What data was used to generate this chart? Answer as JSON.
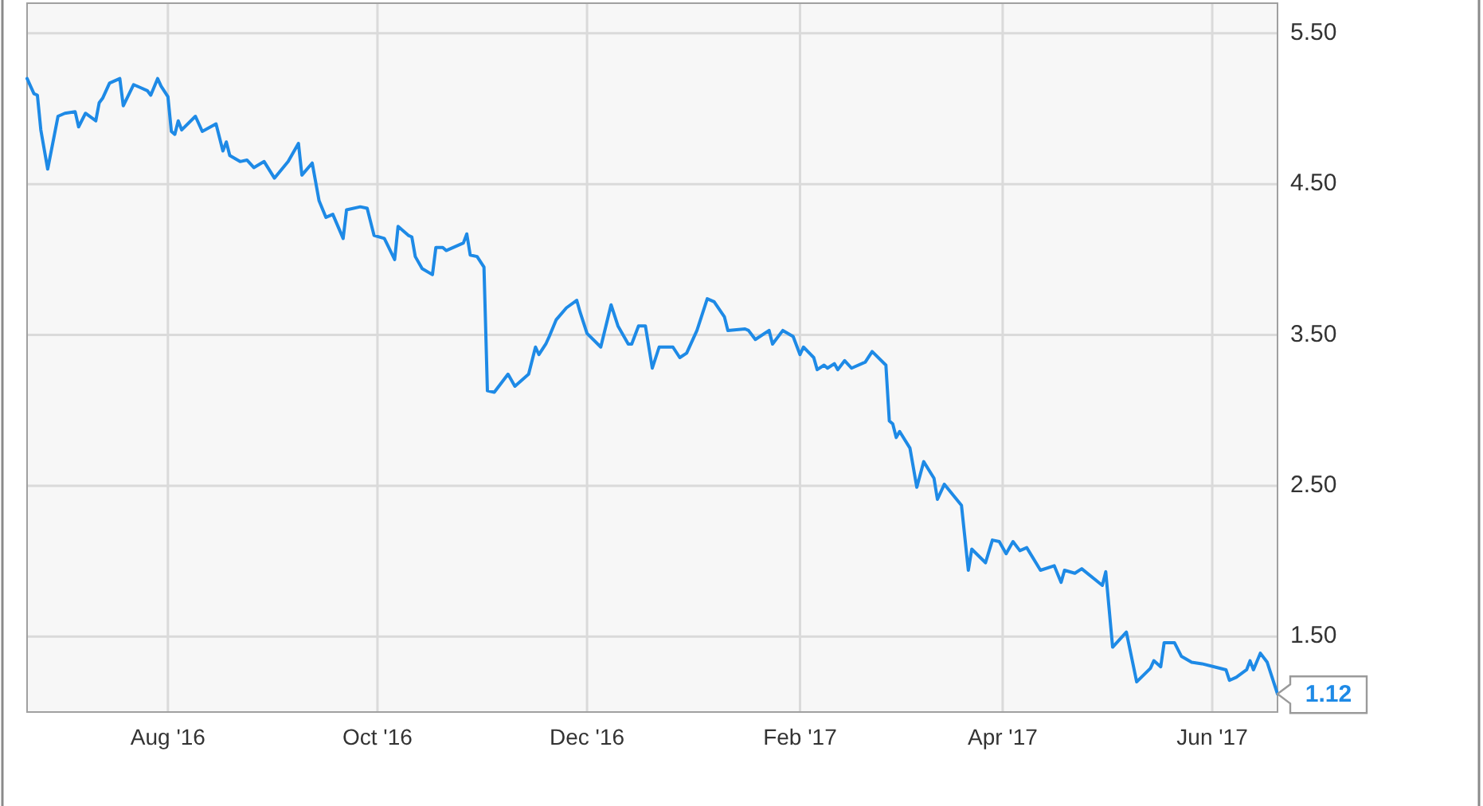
{
  "chart_data": {
    "type": "line",
    "x": [
      "2016-06-21",
      "2016-06-23",
      "2016-06-24",
      "2016-06-25",
      "2016-06-27",
      "2016-06-30",
      "2016-07-02",
      "2016-07-05",
      "2016-07-06",
      "2016-07-08",
      "2016-07-11",
      "2016-07-12",
      "2016-07-13",
      "2016-07-15",
      "2016-07-18",
      "2016-07-19",
      "2016-07-22",
      "2016-07-24",
      "2016-07-26",
      "2016-07-27",
      "2016-07-29",
      "2016-07-30",
      "2016-08-01",
      "2016-08-02",
      "2016-08-03",
      "2016-08-04",
      "2016-08-05",
      "2016-08-09",
      "2016-08-11",
      "2016-08-15",
      "2016-08-17",
      "2016-08-18",
      "2016-08-19",
      "2016-08-22",
      "2016-08-24",
      "2016-08-26",
      "2016-08-29",
      "2016-09-01",
      "2016-09-05",
      "2016-09-08",
      "2016-09-09",
      "2016-09-12",
      "2016-09-14",
      "2016-09-16",
      "2016-09-18",
      "2016-09-21",
      "2016-09-22",
      "2016-09-26",
      "2016-09-28",
      "2016-09-30",
      "2016-10-03",
      "2016-10-06",
      "2016-10-07",
      "2016-10-10",
      "2016-10-11",
      "2016-10-12",
      "2016-10-14",
      "2016-10-17",
      "2016-10-18",
      "2016-10-20",
      "2016-10-21",
      "2016-10-26",
      "2016-10-27",
      "2016-10-28",
      "2016-10-30",
      "2016-11-01",
      "2016-11-02",
      "2016-11-04",
      "2016-11-08",
      "2016-11-10",
      "2016-11-14",
      "2016-11-16",
      "2016-11-17",
      "2016-11-19",
      "2016-11-20",
      "2016-11-22",
      "2016-11-25",
      "2016-11-28",
      "2016-11-29",
      "2016-12-01",
      "2016-12-05",
      "2016-12-08",
      "2016-12-10",
      "2016-12-13",
      "2016-12-14",
      "2016-12-16",
      "2016-12-18",
      "2016-12-20",
      "2016-12-22",
      "2016-12-26",
      "2016-12-28",
      "2016-12-30",
      "2017-01-02",
      "2017-01-05",
      "2017-01-07",
      "2017-01-10",
      "2017-01-11",
      "2017-01-16",
      "2017-01-17",
      "2017-01-19",
      "2017-01-23",
      "2017-01-24",
      "2017-01-27",
      "2017-01-30",
      "2017-02-01",
      "2017-02-02",
      "2017-02-05",
      "2017-02-06",
      "2017-02-08",
      "2017-02-09",
      "2017-02-11",
      "2017-02-12",
      "2017-02-14",
      "2017-02-16",
      "2017-02-20",
      "2017-02-22",
      "2017-02-26",
      "2017-02-27",
      "2017-02-28",
      "2017-03-01",
      "2017-03-02",
      "2017-03-05",
      "2017-03-07",
      "2017-03-09",
      "2017-03-12",
      "2017-03-13",
      "2017-03-15",
      "2017-03-20",
      "2017-03-22",
      "2017-03-23",
      "2017-03-27",
      "2017-03-29",
      "2017-03-31",
      "2017-04-02",
      "2017-04-04",
      "2017-04-06",
      "2017-04-08",
      "2017-04-12",
      "2017-04-16",
      "2017-04-18",
      "2017-04-19",
      "2017-04-22",
      "2017-04-24",
      "2017-04-30",
      "2017-05-01",
      "2017-05-03",
      "2017-05-07",
      "2017-05-10",
      "2017-05-14",
      "2017-05-15",
      "2017-05-17",
      "2017-05-18",
      "2017-05-21",
      "2017-05-23",
      "2017-05-26",
      "2017-05-29",
      "2017-06-05",
      "2017-06-06",
      "2017-06-08",
      "2017-06-11",
      "2017-06-12",
      "2017-06-13",
      "2017-06-15",
      "2017-06-17",
      "2017-06-20"
    ],
    "series": [
      {
        "color": "#1e8ae6",
        "values": [
          5.2,
          5.1,
          5.09,
          4.86,
          4.6,
          4.95,
          4.97,
          4.98,
          4.88,
          4.97,
          4.92,
          5.04,
          5.07,
          5.17,
          5.2,
          5.02,
          5.16,
          5.14,
          5.12,
          5.09,
          5.2,
          5.15,
          5.08,
          4.85,
          4.83,
          4.92,
          4.86,
          4.95,
          4.85,
          4.9,
          4.72,
          4.78,
          4.69,
          4.65,
          4.66,
          4.61,
          4.65,
          4.54,
          4.65,
          4.77,
          4.56,
          4.64,
          4.39,
          4.28,
          4.3,
          4.14,
          4.33,
          4.35,
          4.34,
          4.16,
          4.14,
          4.0,
          4.22,
          4.16,
          4.15,
          4.02,
          3.94,
          3.9,
          4.08,
          4.08,
          4.06,
          4.11,
          4.17,
          4.03,
          4.02,
          3.95,
          3.13,
          3.12,
          3.24,
          3.16,
          3.24,
          3.42,
          3.37,
          3.44,
          3.49,
          3.6,
          3.68,
          3.73,
          3.65,
          3.51,
          3.42,
          3.7,
          3.56,
          3.44,
          3.44,
          3.56,
          3.56,
          3.28,
          3.42,
          3.42,
          3.35,
          3.38,
          3.53,
          3.74,
          3.72,
          3.62,
          3.53,
          3.54,
          3.53,
          3.47,
          3.53,
          3.44,
          3.53,
          3.49,
          3.37,
          3.42,
          3.35,
          3.27,
          3.3,
          3.28,
          3.31,
          3.27,
          3.33,
          3.28,
          3.32,
          3.39,
          3.3,
          2.93,
          2.91,
          2.82,
          2.86,
          2.75,
          2.49,
          2.66,
          2.55,
          2.41,
          2.51,
          2.37,
          1.94,
          2.08,
          1.99,
          2.14,
          2.13,
          2.05,
          2.13,
          2.07,
          2.09,
          1.94,
          1.97,
          1.86,
          1.94,
          1.92,
          1.95,
          1.84,
          1.93,
          1.43,
          1.53,
          1.2,
          1.29,
          1.34,
          1.3,
          1.46,
          1.46,
          1.37,
          1.33,
          1.32,
          1.28,
          1.21,
          1.23,
          1.28,
          1.34,
          1.28,
          1.39,
          1.33,
          1.12
        ]
      }
    ],
    "xlim": [
      "2016-06-21",
      "2017-06-20"
    ],
    "ylim": [
      1.0,
      5.7
    ],
    "xticks": [
      {
        "value": "2016-08-01",
        "label": "Aug '16"
      },
      {
        "value": "2016-10-01",
        "label": "Oct '16"
      },
      {
        "value": "2016-12-01",
        "label": "Dec '16"
      },
      {
        "value": "2017-02-01",
        "label": "Feb '17"
      },
      {
        "value": "2017-04-01",
        "label": "Apr '17"
      },
      {
        "value": "2017-06-01",
        "label": "Jun '17"
      }
    ],
    "yticks": [
      {
        "value": 1.5,
        "label": "1.50"
      },
      {
        "value": 2.5,
        "label": "2.50"
      },
      {
        "value": 3.5,
        "label": "3.50"
      },
      {
        "value": 4.5,
        "label": "4.50"
      },
      {
        "value": 5.5,
        "label": "5.50"
      }
    ],
    "grid": true,
    "line_style": "solid",
    "annotations": [
      {
        "text": "1.12",
        "x": "2017-06-20",
        "y": 1.12
      }
    ]
  }
}
